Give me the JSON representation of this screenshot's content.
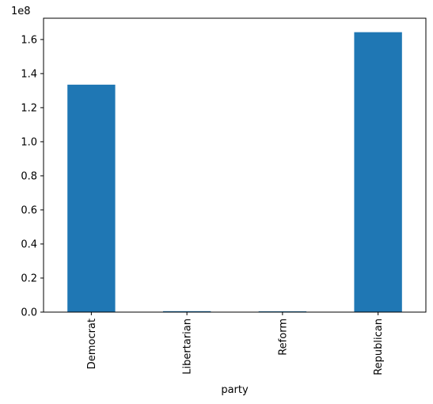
{
  "chart_data": {
    "type": "bar",
    "categories": [
      "Democrat",
      "Libertarian",
      "Reform",
      "Republican"
    ],
    "values": [
      133500000,
      550000,
      450000,
      164300000
    ],
    "scale_label": "1e8",
    "xlabel": "party",
    "ylabel": "",
    "ylim": [
      0,
      172500000
    ],
    "yticks": [
      0,
      20000000,
      40000000,
      60000000,
      80000000,
      100000000,
      120000000,
      140000000,
      160000000
    ],
    "ytick_labels": [
      "0.0",
      "0.2",
      "0.4",
      "0.6",
      "0.8",
      "1.0",
      "1.2",
      "1.4",
      "1.6"
    ],
    "bar_color": "#1f77b4",
    "grid": false,
    "legend": false
  }
}
